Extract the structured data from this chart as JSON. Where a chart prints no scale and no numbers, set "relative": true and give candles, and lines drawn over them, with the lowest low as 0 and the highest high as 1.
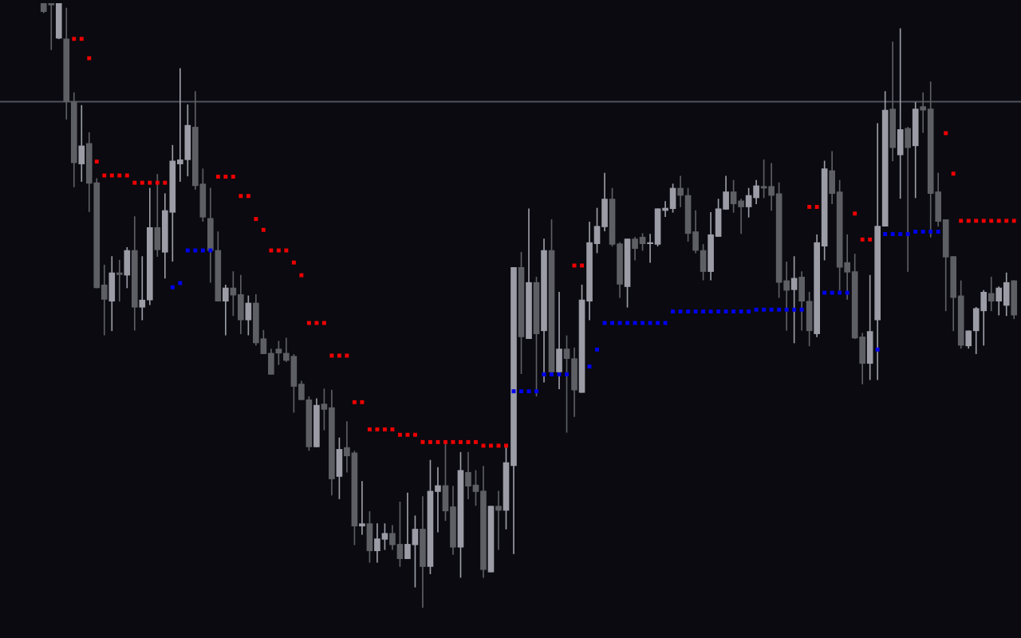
{
  "chart_data": {
    "type": "candlestick",
    "relative": true,
    "marker": "square",
    "categories": [
      null,
      null,
      null,
      null,
      null,
      null,
      null,
      null,
      null,
      null,
      null,
      null,
      null,
      null,
      null,
      null,
      null,
      null,
      null,
      null,
      null,
      null,
      null,
      null,
      null,
      null,
      null,
      null,
      null,
      null,
      null,
      null,
      null,
      null,
      null,
      null,
      null,
      null,
      null,
      null,
      null,
      null,
      null,
      null,
      null,
      null,
      null,
      null,
      null,
      null,
      null,
      null,
      null,
      null,
      null,
      null,
      null,
      null,
      null,
      null,
      null,
      null,
      null,
      null,
      null,
      null,
      null,
      null,
      null,
      null,
      null,
      null,
      null,
      null,
      null,
      null,
      null,
      null,
      null,
      null,
      null,
      null,
      null,
      null,
      null,
      null,
      null,
      null,
      null,
      null,
      null,
      null,
      null,
      null,
      null,
      null,
      null,
      null,
      null,
      null,
      null,
      null,
      null,
      null,
      null,
      null,
      null,
      null,
      null,
      null,
      null,
      null,
      null,
      null,
      null,
      null,
      null,
      null,
      null,
      null,
      null,
      null,
      null,
      null,
      null,
      null,
      null,
      null,
      null
    ],
    "ohlc": [
      [
        1,
        1,
        0.984,
        0.986
      ],
      [
        1,
        1,
        0.923,
        0.997
      ],
      [
        0.942,
        1,
        0.941,
        1
      ],
      [
        0.941,
        0.992,
        0.808,
        0.837
      ],
      [
        0.837,
        0.852,
        0.696,
        0.736
      ],
      [
        0.734,
        0.831,
        0.705,
        0.764
      ],
      [
        0.768,
        0.786,
        0.655,
        0.702
      ],
      [
        0.703,
        0.71,
        0.529,
        0.529
      ],
      [
        0.534,
        0.567,
        0.451,
        0.51
      ],
      [
        0.507,
        0.581,
        0.458,
        0.554
      ],
      [
        0.554,
        0.575,
        0.507,
        0.551
      ],
      [
        0.55,
        0.596,
        0.529,
        0.591
      ],
      [
        0.591,
        0.647,
        0.459,
        0.497
      ],
      [
        0.497,
        0.581,
        0.476,
        0.509
      ],
      [
        0.509,
        0.694,
        0.501,
        0.629
      ],
      [
        0.629,
        0.717,
        0.581,
        0.592
      ],
      [
        0.588,
        0.685,
        0.545,
        0.657
      ],
      [
        0.654,
        0.765,
        0.573,
        0.739
      ],
      [
        0.734,
        0.892,
        0.705,
        0.741
      ],
      [
        0.741,
        0.832,
        0.714,
        0.798
      ],
      [
        0.795,
        0.854,
        0.692,
        0.698
      ],
      [
        0.701,
        0.726,
        0.639,
        0.646
      ],
      [
        0.644,
        0.694,
        0.538,
        0.591
      ],
      [
        0.591,
        0.622,
        0.507,
        0.507
      ],
      [
        0.507,
        0.534,
        0.451,
        0.529
      ],
      [
        0.529,
        0.556,
        0.483,
        0.517
      ],
      [
        0.518,
        0.55,
        0.453,
        0.476
      ],
      [
        0.476,
        0.516,
        0.451,
        0.504
      ],
      [
        0.504,
        0.518,
        0.434,
        0.438
      ],
      [
        0.445,
        0.459,
        0.42,
        0.42
      ],
      [
        0.421,
        0.428,
        0.386,
        0.386
      ],
      [
        0.428,
        0.441,
        0.402,
        0.421
      ],
      [
        0.421,
        0.446,
        0.407,
        0.409
      ],
      [
        0.416,
        0.419,
        0.323,
        0.366
      ],
      [
        0.37,
        0.375,
        0.344,
        0.344
      ],
      [
        0.344,
        0.349,
        0.26,
        0.266
      ],
      [
        0.266,
        0.346,
        0.266,
        0.335
      ],
      [
        0.337,
        0.362,
        0.294,
        0.328
      ],
      [
        0.331,
        0.36,
        0.186,
        0.213
      ],
      [
        0.217,
        0.281,
        0.18,
        0.262
      ],
      [
        0.265,
        0.308,
        0.224,
        0.251
      ],
      [
        0.256,
        0.259,
        0.104,
        0.135
      ],
      [
        0.135,
        0.209,
        0.121,
        0.139
      ],
      [
        0.139,
        0.159,
        0.075,
        0.094
      ],
      [
        0.094,
        0.139,
        0.075,
        0.114
      ],
      [
        0.113,
        0.139,
        0.096,
        0.123
      ],
      [
        0.123,
        0.136,
        0.096,
        0.104
      ],
      [
        0.105,
        0.175,
        0.068,
        0.081
      ],
      [
        0.081,
        0.19,
        0.081,
        0.105
      ],
      [
        0.104,
        0.152,
        0.034,
        0.13
      ],
      [
        0.13,
        0.184,
        0,
        0.068
      ],
      [
        0.068,
        0.244,
        0.056,
        0.193
      ],
      [
        0.192,
        0.232,
        0.125,
        0.202
      ],
      [
        0.202,
        0.272,
        0.144,
        0.16
      ],
      [
        0.167,
        0.201,
        0.088,
        0.1
      ],
      [
        0.1,
        0.257,
        0.05,
        0.227
      ],
      [
        0.224,
        0.257,
        0.18,
        0.201
      ],
      [
        0.203,
        0.227,
        0.169,
        0.192
      ],
      [
        0.193,
        0.234,
        0.05,
        0.063
      ],
      [
        0.059,
        0.168,
        0.059,
        0.168
      ],
      [
        0.168,
        0.193,
        0.096,
        0.161
      ],
      [
        0.161,
        0.268,
        0.13,
        0.24
      ],
      [
        0.235,
        0.563,
        0.089,
        0.563
      ],
      [
        0.563,
        0.588,
        0.387,
        0.448
      ],
      [
        0.445,
        0.66,
        0.445,
        0.538
      ],
      [
        0.538,
        0.547,
        0.35,
        0.453
      ],
      [
        0.458,
        0.61,
        0.373,
        0.591
      ],
      [
        0.591,
        0.642,
        0.39,
        0.39
      ],
      [
        0.39,
        0.522,
        0.362,
        0.428
      ],
      [
        0.428,
        0.45,
        0.29,
        0.412
      ],
      [
        0.412,
        0.43,
        0.316,
        0.36
      ],
      [
        0.356,
        0.534,
        0.356,
        0.509
      ],
      [
        0.507,
        0.638,
        0.476,
        0.604
      ],
      [
        0.602,
        0.661,
        0.587,
        0.631
      ],
      [
        0.63,
        0.719,
        0.623,
        0.676
      ],
      [
        0.676,
        0.694,
        0.598,
        0.601
      ],
      [
        0.602,
        0.604,
        0.513,
        0.535
      ],
      [
        0.531,
        0.61,
        0.497,
        0.61
      ],
      [
        0.61,
        0.613,
        0.575,
        0.594
      ],
      [
        0.613,
        0.619,
        0.591,
        0.602
      ],
      [
        0.602,
        0.618,
        0.571,
        0.604
      ],
      [
        0.601,
        0.66,
        0.598,
        0.66
      ],
      [
        0.657,
        0.672,
        0.647,
        0.661
      ],
      [
        0.66,
        0.701,
        0.654,
        0.694
      ],
      [
        0.694,
        0.714,
        0.663,
        0.682
      ],
      [
        0.682,
        0.694,
        0.606,
        0.619
      ],
      [
        0.622,
        0.657,
        0.587,
        0.591
      ],
      [
        0.591,
        0.601,
        0.542,
        0.556
      ],
      [
        0.556,
        0.654,
        0.542,
        0.617
      ],
      [
        0.614,
        0.676,
        0.614,
        0.66
      ],
      [
        0.659,
        0.714,
        0.659,
        0.688
      ],
      [
        0.688,
        0.707,
        0.654,
        0.668
      ],
      [
        0.673,
        0.676,
        0.619,
        0.663
      ],
      [
        0.663,
        0.694,
        0.646,
        0.682
      ],
      [
        0.678,
        0.707,
        0.668,
        0.698
      ],
      [
        0.697,
        0.741,
        0.678,
        0.694
      ],
      [
        0.697,
        0.735,
        0.657,
        0.682
      ],
      [
        0.685,
        0.703,
        0.513,
        0.538
      ],
      [
        0.541,
        0.572,
        0.459,
        0.525
      ],
      [
        0.526,
        0.581,
        0.438,
        0.545
      ],
      [
        0.547,
        0.556,
        0.459,
        0.507
      ],
      [
        0.507,
        0.522,
        0.433,
        0.458
      ],
      [
        0.453,
        0.617,
        0.448,
        0.604
      ],
      [
        0.598,
        0.739,
        0.575,
        0.726
      ],
      [
        0.723,
        0.755,
        0.668,
        0.685
      ],
      [
        0.688,
        0.707,
        0.525,
        0.563
      ],
      [
        0.571,
        0.617,
        0.51,
        0.555
      ],
      [
        0.556,
        0.585,
        0.445,
        0.446
      ],
      [
        0.448,
        0.454,
        0.37,
        0.404
      ],
      [
        0.404,
        0.55,
        0.377,
        0.457
      ],
      [
        0.476,
        0.801,
        0.377,
        0.631
      ],
      [
        0.631,
        0.854,
        0.631,
        0.823
      ],
      [
        0.825,
        0.936,
        0.739,
        0.761
      ],
      [
        0.749,
        0.958,
        0.677,
        0.791
      ],
      [
        0.793,
        0.795,
        0.556,
        0.761
      ],
      [
        0.764,
        0.836,
        0.678,
        0.825
      ],
      [
        0.829,
        0.852,
        0.786,
        0.823
      ],
      [
        0.825,
        0.87,
        0.613,
        0.685
      ],
      [
        0.688,
        0.719,
        0.631,
        0.639
      ],
      [
        0.642,
        0.642,
        0.491,
        0.58
      ],
      [
        0.581,
        0.581,
        0.458,
        0.513
      ],
      [
        0.516,
        0.541,
        0.429,
        0.434
      ],
      [
        0.433,
        0.458,
        0.429,
        0.458
      ],
      [
        0.458,
        0.497,
        0.42,
        0.495
      ],
      [
        0.491,
        0.525,
        0.434,
        0.522
      ],
      [
        0.52,
        0.547,
        0.491,
        0.507
      ],
      [
        0.507,
        0.531,
        0.484,
        0.529
      ],
      [
        0.5,
        0.554,
        0.483,
        0.538
      ],
      [
        0.541,
        0.541,
        0.478,
        0.484
      ]
    ],
    "colors": [
      "#5e5f65",
      "#5e5f65",
      "#9b9ca6",
      "#5e5f65",
      "#5e5f65",
      "#9b9ca6",
      "#5e5f65",
      "#5e5f65",
      "#5e5f65",
      "#9b9ca6",
      "#5e5f65",
      "#9b9ca6",
      "#5e5f65",
      "#9b9ca6",
      "#9b9ca6",
      "#5e5f65",
      "#9b9ca6",
      "#9b9ca6",
      "#9b9ca6",
      "#9b9ca6",
      "#5e5f65",
      "#5e5f65",
      "#5e5f65",
      "#5e5f65",
      "#9b9ca6",
      "#5e5f65",
      "#5e5f65",
      "#9b9ca6",
      "#5e5f65",
      "#5e5f65",
      "#5e5f65",
      "#5e5f65",
      "#5e5f65",
      "#5e5f65",
      "#5e5f65",
      "#5e5f65",
      "#9b9ca6",
      "#5e5f65",
      "#5e5f65",
      "#9b9ca6",
      "#5e5f65",
      "#5e5f65",
      "#9b9ca6",
      "#5e5f65",
      "#9b9ca6",
      "#9b9ca6",
      "#5e5f65",
      "#5e5f65",
      "#9b9ca6",
      "#9b9ca6",
      "#5e5f65",
      "#9b9ca6",
      "#9b9ca6",
      "#5e5f65",
      "#5e5f65",
      "#9b9ca6",
      "#5e5f65",
      "#5e5f65",
      "#5e5f65",
      "#9b9ca6",
      "#5e5f65",
      "#9b9ca6",
      "#9b9ca6",
      "#5e5f65",
      "#9b9ca6",
      "#5e5f65",
      "#9b9ca6",
      "#5e5f65",
      "#9b9ca6",
      "#5e5f65",
      "#5e5f65",
      "#9b9ca6",
      "#9b9ca6",
      "#9b9ca6",
      "#9b9ca6",
      "#5e5f65",
      "#5e5f65",
      "#9b9ca6",
      "#5e5f65",
      "#5e5f65",
      "#9b9ca6",
      "#9b9ca6",
      "#9b9ca6",
      "#9b9ca6",
      "#5e5f65",
      "#5e5f65",
      "#5e5f65",
      "#5e5f65",
      "#9b9ca6",
      "#9b9ca6",
      "#9b9ca6",
      "#5e5f65",
      "#5e5f65",
      "#9b9ca6",
      "#9b9ca6",
      "#5e5f65",
      "#5e5f65",
      "#5e5f65",
      "#5e5f65",
      "#9b9ca6",
      "#5e5f65",
      "#5e5f65",
      "#9b9ca6",
      "#9b9ca6",
      "#5e5f65",
      "#5e5f65",
      "#5e5f65",
      "#5e5f65",
      "#5e5f65",
      "#9b9ca6",
      "#9b9ca6",
      "#9b9ca6",
      "#5e5f65",
      "#9b9ca6",
      "#5e5f65",
      "#9b9ca6",
      "#5e5f65",
      "#5e5f65",
      "#5e5f65",
      "#5e5f65",
      "#5e5f65",
      "#5e5f65",
      "#9b9ca6",
      "#9b9ca6",
      "#9b9ca6",
      "#5e5f65",
      "#9b9ca6",
      "#9b9ca6",
      "#5e5f65"
    ],
    "series": [
      {
        "type": "scatter",
        "color": "#ee0000",
        "values": [
          null,
          null,
          null,
          null,
          0.941,
          0.941,
          0.909,
          0.738,
          0.715,
          0.715,
          0.715,
          0.715,
          0.703,
          0.703,
          0.703,
          0.703,
          0.703,
          null,
          null,
          null,
          null,
          null,
          null,
          0.713,
          0.713,
          0.713,
          0.681,
          0.681,
          0.643,
          0.625,
          0.591,
          0.591,
          0.591,
          0.571,
          0.55,
          0.471,
          0.471,
          0.471,
          0.417,
          0.417,
          0.417,
          0.34,
          0.34,
          0.295,
          0.295,
          0.295,
          0.295,
          0.286,
          0.286,
          0.286,
          0.274,
          0.274,
          0.274,
          0.274,
          0.274,
          0.274,
          0.274,
          0.274,
          0.268,
          0.268,
          0.268,
          0.268,
          null,
          null,
          null,
          null,
          null,
          null,
          null,
          null,
          0.566,
          0.566,
          null,
          null,
          null,
          null,
          null,
          null,
          null,
          null,
          null,
          null,
          null,
          null,
          null,
          null,
          null,
          null,
          null,
          null,
          null,
          null,
          null,
          null,
          null,
          null,
          null,
          null,
          null,
          null,
          null,
          0.663,
          0.663,
          null,
          null,
          null,
          null,
          0.652,
          0.609,
          0.609,
          null,
          null,
          null,
          null,
          null,
          null,
          null,
          null,
          null,
          0.785,
          0.718,
          0.64,
          0.64,
          0.64,
          0.64,
          0.64,
          0.64,
          0.64,
          0.64
        ]
      },
      {
        "type": "scatter",
        "color": "#0000ee",
        "values": [
          null,
          null,
          null,
          null,
          null,
          null,
          null,
          null,
          null,
          null,
          null,
          null,
          null,
          null,
          null,
          null,
          null,
          0.53,
          0.537,
          0.591,
          0.591,
          0.591,
          0.591,
          null,
          null,
          null,
          null,
          null,
          null,
          null,
          null,
          null,
          null,
          null,
          null,
          null,
          null,
          null,
          null,
          null,
          null,
          null,
          null,
          null,
          null,
          null,
          null,
          null,
          null,
          null,
          null,
          null,
          null,
          null,
          null,
          null,
          null,
          null,
          null,
          null,
          null,
          null,
          0.358,
          0.358,
          0.358,
          0.358,
          0.386,
          0.386,
          0.386,
          0.386,
          null,
          null,
          0.399,
          0.427,
          0.471,
          0.471,
          0.471,
          0.471,
          0.471,
          0.471,
          0.471,
          0.471,
          0.471,
          0.49,
          0.49,
          0.49,
          0.49,
          0.49,
          0.49,
          0.49,
          0.49,
          0.49,
          0.49,
          0.49,
          0.493,
          0.493,
          0.493,
          0.493,
          0.493,
          0.493,
          0.493,
          null,
          null,
          0.521,
          0.521,
          0.521,
          0.521,
          null,
          null,
          null,
          0.427,
          0.618,
          0.618,
          0.618,
          0.618,
          0.622,
          0.622,
          0.622,
          0.622,
          null,
          null,
          null,
          null,
          null,
          null,
          null,
          null,
          null,
          null
        ]
      }
    ],
    "ref_lines": [
      {
        "axis": "y",
        "value": 0.837,
        "color": "#50535c"
      }
    ]
  }
}
